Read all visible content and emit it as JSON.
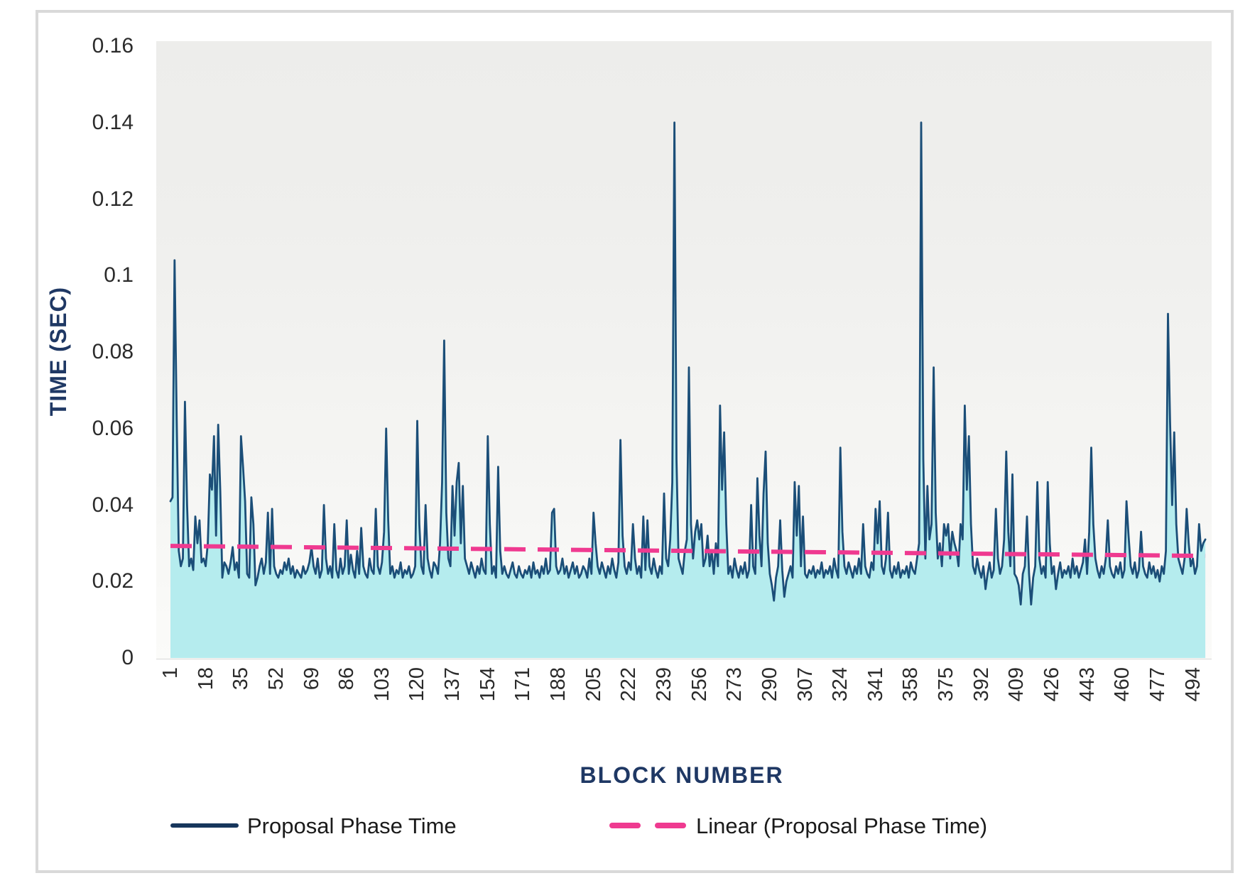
{
  "figure": {
    "border_color": "#d9d9d9",
    "plot_background_top": "#ededeb",
    "plot_background_bottom": "#fbfbf9"
  },
  "chart_data": {
    "type": "line",
    "title": "",
    "xlabel": "BLOCK NUMBER",
    "ylabel": "TIME (SEC)",
    "xlim": [
      1,
      500
    ],
    "ylim": [
      0,
      0.16
    ],
    "grid": false,
    "legend_position": "bottom",
    "y_tick_values": [
      0.16,
      0.14,
      0.12,
      0.1,
      0.08,
      0.06,
      0.04,
      0.02,
      0
    ],
    "y_tick_labels": [
      "0.16",
      "0.14",
      "0.12",
      "0.1",
      "0.08",
      "0.06",
      "0.04",
      "0.02",
      "0"
    ],
    "x_tick_labels": [
      1,
      18,
      35,
      52,
      69,
      86,
      103,
      120,
      137,
      154,
      171,
      188,
      205,
      222,
      239,
      256,
      273,
      290,
      307,
      324,
      341,
      358,
      375,
      392,
      409,
      426,
      443,
      460,
      477,
      494
    ],
    "series": [
      {
        "name": "Proposal Phase Time",
        "type": "area-line",
        "line_color": "#1b4e78",
        "legend_swatch_color": "#17365c",
        "fill_color": "#b5ecee",
        "x_start": 1,
        "x_step": 1,
        "values": [
          0.041,
          0.042,
          0.104,
          0.062,
          0.028,
          0.024,
          0.026,
          0.067,
          0.04,
          0.024,
          0.026,
          0.023,
          0.037,
          0.03,
          0.036,
          0.025,
          0.026,
          0.024,
          0.03,
          0.048,
          0.044,
          0.058,
          0.032,
          0.061,
          0.044,
          0.021,
          0.025,
          0.024,
          0.022,
          0.025,
          0.029,
          0.023,
          0.025,
          0.021,
          0.058,
          0.05,
          0.041,
          0.022,
          0.021,
          0.042,
          0.035,
          0.019,
          0.021,
          0.024,
          0.026,
          0.022,
          0.025,
          0.038,
          0.022,
          0.039,
          0.024,
          0.022,
          0.021,
          0.023,
          0.022,
          0.025,
          0.023,
          0.026,
          0.022,
          0.024,
          0.021,
          0.023,
          0.022,
          0.021,
          0.024,
          0.022,
          0.023,
          0.025,
          0.029,
          0.024,
          0.022,
          0.026,
          0.021,
          0.023,
          0.04,
          0.026,
          0.022,
          0.024,
          0.021,
          0.035,
          0.023,
          0.021,
          0.026,
          0.022,
          0.024,
          0.036,
          0.022,
          0.027,
          0.023,
          0.021,
          0.028,
          0.022,
          0.034,
          0.024,
          0.022,
          0.021,
          0.026,
          0.023,
          0.022,
          0.039,
          0.024,
          0.022,
          0.025,
          0.033,
          0.06,
          0.036,
          0.022,
          0.024,
          0.021,
          0.023,
          0.022,
          0.025,
          0.021,
          0.023,
          0.022,
          0.024,
          0.021,
          0.022,
          0.024,
          0.062,
          0.035,
          0.024,
          0.022,
          0.04,
          0.026,
          0.023,
          0.021,
          0.025,
          0.024,
          0.022,
          0.03,
          0.046,
          0.083,
          0.038,
          0.026,
          0.024,
          0.045,
          0.032,
          0.046,
          0.051,
          0.03,
          0.045,
          0.026,
          0.024,
          0.022,
          0.025,
          0.023,
          0.021,
          0.024,
          0.022,
          0.026,
          0.023,
          0.022,
          0.058,
          0.035,
          0.022,
          0.024,
          0.021,
          0.05,
          0.028,
          0.022,
          0.024,
          0.022,
          0.021,
          0.023,
          0.025,
          0.022,
          0.021,
          0.024,
          0.022,
          0.021,
          0.023,
          0.022,
          0.024,
          0.021,
          0.025,
          0.022,
          0.023,
          0.021,
          0.024,
          0.022,
          0.026,
          0.022,
          0.023,
          0.038,
          0.039,
          0.024,
          0.022,
          0.023,
          0.026,
          0.022,
          0.024,
          0.021,
          0.023,
          0.025,
          0.022,
          0.024,
          0.021,
          0.022,
          0.024,
          0.023,
          0.021,
          0.026,
          0.022,
          0.038,
          0.03,
          0.024,
          0.022,
          0.025,
          0.023,
          0.021,
          0.024,
          0.022,
          0.026,
          0.023,
          0.021,
          0.025,
          0.057,
          0.032,
          0.024,
          0.022,
          0.025,
          0.023,
          0.035,
          0.026,
          0.022,
          0.024,
          0.021,
          0.037,
          0.023,
          0.036,
          0.024,
          0.022,
          0.026,
          0.023,
          0.021,
          0.024,
          0.022,
          0.043,
          0.026,
          0.024,
          0.031,
          0.046,
          0.14,
          0.052,
          0.026,
          0.024,
          0.022,
          0.028,
          0.031,
          0.076,
          0.035,
          0.026,
          0.033,
          0.036,
          0.031,
          0.035,
          0.024,
          0.026,
          0.032,
          0.024,
          0.028,
          0.022,
          0.03,
          0.024,
          0.066,
          0.044,
          0.059,
          0.035,
          0.022,
          0.024,
          0.021,
          0.026,
          0.023,
          0.021,
          0.024,
          0.022,
          0.025,
          0.021,
          0.023,
          0.04,
          0.024,
          0.022,
          0.047,
          0.032,
          0.024,
          0.043,
          0.054,
          0.03,
          0.022,
          0.019,
          0.015,
          0.021,
          0.024,
          0.036,
          0.023,
          0.016,
          0.02,
          0.022,
          0.024,
          0.021,
          0.046,
          0.032,
          0.045,
          0.024,
          0.037,
          0.022,
          0.021,
          0.023,
          0.022,
          0.024,
          0.021,
          0.023,
          0.022,
          0.025,
          0.021,
          0.023,
          0.022,
          0.024,
          0.021,
          0.026,
          0.023,
          0.021,
          0.055,
          0.033,
          0.024,
          0.022,
          0.025,
          0.023,
          0.021,
          0.024,
          0.022,
          0.026,
          0.022,
          0.035,
          0.024,
          0.022,
          0.021,
          0.025,
          0.023,
          0.039,
          0.03,
          0.041,
          0.024,
          0.022,
          0.026,
          0.038,
          0.023,
          0.021,
          0.024,
          0.022,
          0.025,
          0.021,
          0.023,
          0.022,
          0.024,
          0.021,
          0.025,
          0.023,
          0.022,
          0.026,
          0.03,
          0.14,
          0.052,
          0.026,
          0.045,
          0.031,
          0.035,
          0.076,
          0.038,
          0.026,
          0.03,
          0.024,
          0.035,
          0.032,
          0.035,
          0.026,
          0.033,
          0.03,
          0.028,
          0.024,
          0.035,
          0.031,
          0.066,
          0.044,
          0.058,
          0.035,
          0.024,
          0.022,
          0.026,
          0.023,
          0.021,
          0.024,
          0.018,
          0.022,
          0.025,
          0.021,
          0.023,
          0.039,
          0.026,
          0.022,
          0.024,
          0.031,
          0.054,
          0.033,
          0.024,
          0.048,
          0.022,
          0.021,
          0.019,
          0.014,
          0.022,
          0.024,
          0.037,
          0.022,
          0.014,
          0.021,
          0.024,
          0.046,
          0.026,
          0.022,
          0.024,
          0.021,
          0.046,
          0.03,
          0.022,
          0.024,
          0.018,
          0.022,
          0.025,
          0.021,
          0.023,
          0.022,
          0.024,
          0.021,
          0.026,
          0.022,
          0.024,
          0.021,
          0.023,
          0.025,
          0.031,
          0.022,
          0.033,
          0.055,
          0.035,
          0.026,
          0.023,
          0.021,
          0.024,
          0.022,
          0.026,
          0.036,
          0.024,
          0.022,
          0.021,
          0.024,
          0.022,
          0.025,
          0.021,
          0.023,
          0.041,
          0.032,
          0.024,
          0.022,
          0.025,
          0.021,
          0.023,
          0.033,
          0.024,
          0.022,
          0.021,
          0.025,
          0.022,
          0.024,
          0.021,
          0.023,
          0.02,
          0.024,
          0.022,
          0.028,
          0.09,
          0.062,
          0.04,
          0.059,
          0.035,
          0.026,
          0.024,
          0.022,
          0.026,
          0.039,
          0.03,
          0.024,
          0.026,
          0.022,
          0.024,
          0.035,
          0.028,
          0.03,
          0.031
        ]
      },
      {
        "name": "Linear (Proposal Phase Time)",
        "type": "trendline",
        "style": "dashed",
        "color": "#ef3a90",
        "start_value": 0.0293,
        "end_value": 0.0267
      }
    ]
  },
  "legend": {
    "items": [
      {
        "label": "Proposal Phase Time",
        "swatch": "solid-line",
        "color": "#17365c"
      },
      {
        "label": "Linear (Proposal Phase Time)",
        "swatch": "dashed-line",
        "color": "#ef3a90"
      }
    ]
  }
}
